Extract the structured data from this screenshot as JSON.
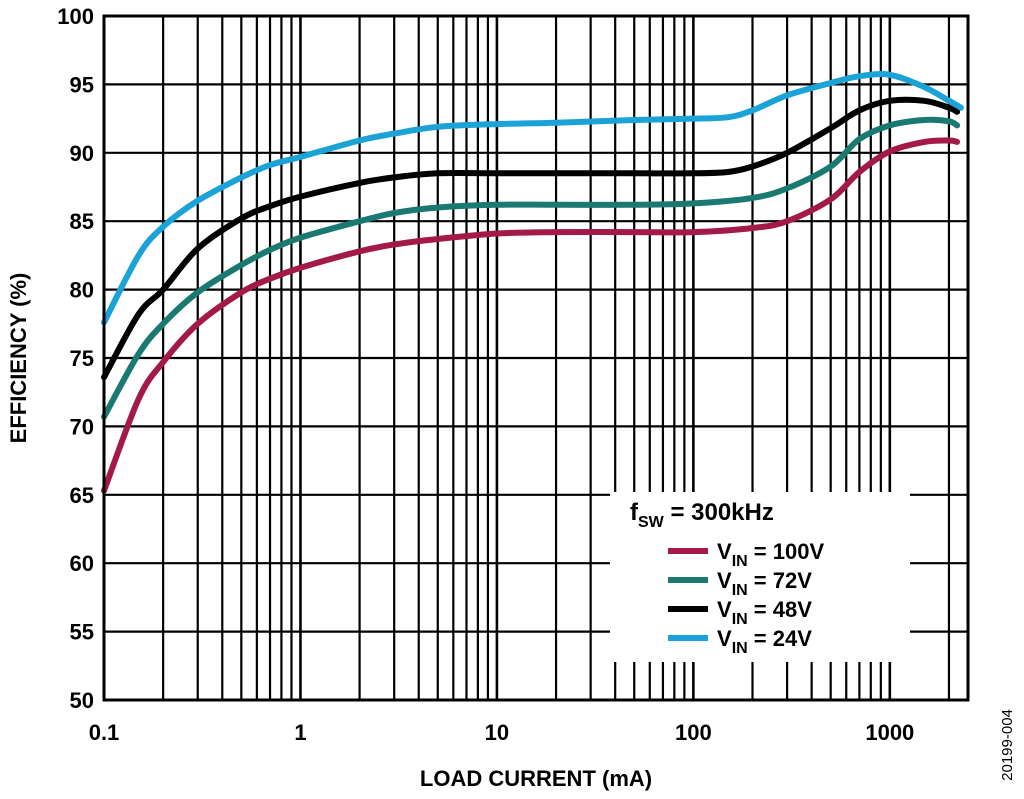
{
  "chart_data": {
    "type": "line",
    "xlabel": "LOAD CURRENT (mA)",
    "ylabel": "EFFICIENCY (%)",
    "x_scale": "log",
    "xlim": [
      0.1,
      2500
    ],
    "ylim": [
      50,
      100
    ],
    "x_ticks": [
      {
        "value": 0.1,
        "label": "0.1"
      },
      {
        "value": 1,
        "label": "1"
      },
      {
        "value": 10,
        "label": "10"
      },
      {
        "value": 100,
        "label": "100"
      },
      {
        "value": 1000,
        "label": "1000"
      }
    ],
    "y_ticks": [
      50,
      55,
      60,
      65,
      70,
      75,
      80,
      85,
      90,
      95,
      100
    ],
    "grid": true,
    "legend": {
      "placement": "bottom-right",
      "title_main": "f",
      "title_sub": "SW",
      "title_rest": " = 300kHz"
    },
    "series": [
      {
        "name_main": "V",
        "name_sub": "IN",
        "name_rest": " = 100V",
        "color": "#A3194A",
        "points": [
          [
            0.1,
            65.3
          ],
          [
            0.15,
            72.0
          ],
          [
            0.2,
            74.7
          ],
          [
            0.3,
            77.5
          ],
          [
            0.5,
            79.8
          ],
          [
            0.7,
            80.8
          ],
          [
            1,
            81.6
          ],
          [
            2,
            82.8
          ],
          [
            3,
            83.3
          ],
          [
            5,
            83.7
          ],
          [
            10,
            84.1
          ],
          [
            20,
            84.2
          ],
          [
            50,
            84.2
          ],
          [
            100,
            84.2
          ],
          [
            200,
            84.5
          ],
          [
            300,
            85.0
          ],
          [
            500,
            86.6
          ],
          [
            700,
            88.6
          ],
          [
            1000,
            90.1
          ],
          [
            1500,
            90.8
          ],
          [
            2000,
            90.9
          ],
          [
            2200,
            90.8
          ]
        ]
      },
      {
        "name_main": "V",
        "name_sub": "IN",
        "name_rest": " = 72V",
        "color": "#1A7A72",
        "points": [
          [
            0.1,
            70.7
          ],
          [
            0.15,
            75.3
          ],
          [
            0.2,
            77.5
          ],
          [
            0.3,
            79.8
          ],
          [
            0.5,
            81.8
          ],
          [
            0.7,
            82.9
          ],
          [
            1,
            83.8
          ],
          [
            2,
            85.0
          ],
          [
            3,
            85.6
          ],
          [
            5,
            86.0
          ],
          [
            10,
            86.2
          ],
          [
            20,
            86.2
          ],
          [
            50,
            86.2
          ],
          [
            100,
            86.3
          ],
          [
            200,
            86.7
          ],
          [
            300,
            87.4
          ],
          [
            500,
            89.0
          ],
          [
            700,
            91.0
          ],
          [
            1000,
            92.0
          ],
          [
            1500,
            92.4
          ],
          [
            2000,
            92.3
          ],
          [
            2200,
            92.0
          ]
        ]
      },
      {
        "name_main": "V",
        "name_sub": "IN",
        "name_rest": " = 48V",
        "color": "#000000",
        "points": [
          [
            0.1,
            73.6
          ],
          [
            0.15,
            78.2
          ],
          [
            0.2,
            80.0
          ],
          [
            0.3,
            83.0
          ],
          [
            0.5,
            85.2
          ],
          [
            0.7,
            86.1
          ],
          [
            1,
            86.8
          ],
          [
            2,
            87.8
          ],
          [
            3,
            88.2
          ],
          [
            5,
            88.5
          ],
          [
            10,
            88.5
          ],
          [
            20,
            88.5
          ],
          [
            50,
            88.5
          ],
          [
            100,
            88.5
          ],
          [
            150,
            88.6
          ],
          [
            200,
            89.0
          ],
          [
            300,
            90.0
          ],
          [
            500,
            91.8
          ],
          [
            700,
            93.1
          ],
          [
            1000,
            93.8
          ],
          [
            1500,
            93.8
          ],
          [
            2000,
            93.3
          ],
          [
            2200,
            93.0
          ]
        ]
      },
      {
        "name_main": "V",
        "name_sub": "IN",
        "name_rest": " = 24V",
        "color": "#1BA3D8",
        "points": [
          [
            0.1,
            77.6
          ],
          [
            0.15,
            82.5
          ],
          [
            0.2,
            84.6
          ],
          [
            0.3,
            86.5
          ],
          [
            0.5,
            88.2
          ],
          [
            0.7,
            89.1
          ],
          [
            1,
            89.7
          ],
          [
            2,
            90.9
          ],
          [
            3,
            91.4
          ],
          [
            5,
            91.9
          ],
          [
            10,
            92.1
          ],
          [
            20,
            92.2
          ],
          [
            50,
            92.4
          ],
          [
            100,
            92.5
          ],
          [
            150,
            92.6
          ],
          [
            200,
            93.1
          ],
          [
            300,
            94.2
          ],
          [
            500,
            95.1
          ],
          [
            700,
            95.6
          ],
          [
            1000,
            95.7
          ],
          [
            1500,
            94.8
          ],
          [
            2000,
            93.8
          ],
          [
            2300,
            93.3
          ]
        ]
      }
    ],
    "figure_code": "20199-004"
  }
}
